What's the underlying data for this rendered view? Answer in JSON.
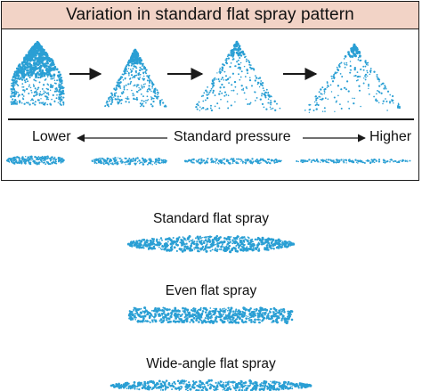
{
  "title": "Variation in standard flat spray pattern",
  "pressure_axis": {
    "low_label": "Lower",
    "center_label": "Standard pressure",
    "high_label": "Higher"
  },
  "sections": [
    {
      "label": "Standard flat spray"
    },
    {
      "label": "Even flat spray"
    },
    {
      "label": "Wide-angle flat spray"
    }
  ],
  "colors": {
    "spray": "#2a9fd4",
    "title_bg": "#f2d3c6",
    "line": "#1a1a1a"
  }
}
